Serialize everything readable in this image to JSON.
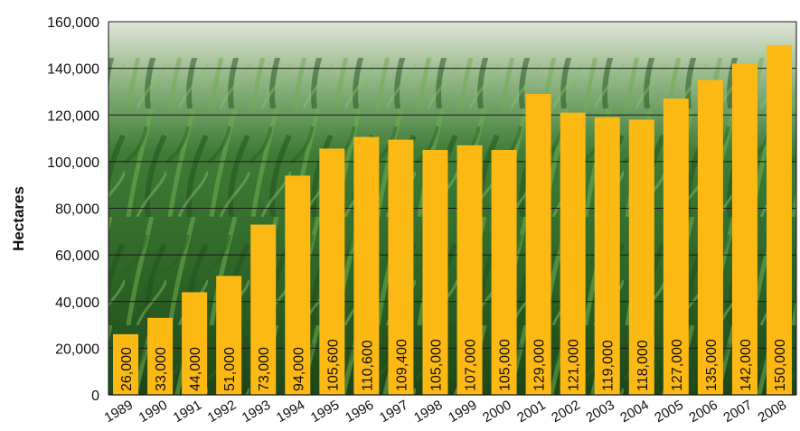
{
  "chart_data": {
    "type": "bar",
    "title": "",
    "xlabel": "",
    "ylabel": "Hectares",
    "ylim": [
      0,
      160000
    ],
    "yticks": [
      "0",
      "20,000",
      "40,000",
      "60,000",
      "80,000",
      "100,000",
      "120,000",
      "140,000",
      "160,000"
    ],
    "grid": true,
    "categories": [
      "1989",
      "1990",
      "1991",
      "1992",
      "1993",
      "1994",
      "1995",
      "1996",
      "1997",
      "1998",
      "1999",
      "2000",
      "2001",
      "2002",
      "2003",
      "2004",
      "2005",
      "2006",
      "2007",
      "2008"
    ],
    "values": [
      26000,
      33000,
      44000,
      51000,
      73000,
      94000,
      105600,
      110600,
      109400,
      105000,
      107000,
      105000,
      129000,
      121000,
      119000,
      118000,
      127000,
      135000,
      142000,
      150000
    ],
    "labels": [
      "26,000",
      "33,000",
      "44,000",
      "51,000",
      "73,000",
      "94,000",
      "105,600",
      "110,600",
      "109,400",
      "105,000",
      "107,000",
      "105,000",
      "129,000",
      "121,000",
      "119,000",
      "118,000",
      "127,000",
      "135,000",
      "142,000",
      "150,000"
    ],
    "colors": {
      "bar": "#FDB913",
      "grid": "#1a1a1a",
      "axis": "#111111"
    }
  }
}
